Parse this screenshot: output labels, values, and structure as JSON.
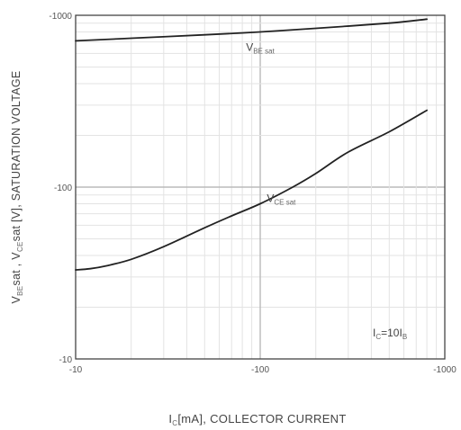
{
  "chart_data": {
    "type": "line",
    "x_scale": "log",
    "y_scale": "log",
    "xlim": [
      -10,
      -1000
    ],
    "ylim": [
      -10,
      -1000
    ],
    "x_ticks": [
      "-10",
      "-100",
      "-1000"
    ],
    "y_ticks": [
      "-10",
      "-100",
      "-1000"
    ],
    "x_tick_values": [
      10,
      100,
      1000
    ],
    "y_tick_values": [
      10,
      100,
      1000
    ],
    "grid": true,
    "xlabel": {
      "main": "I",
      "sub": "C",
      "rest": "[mA], COLLECTOR CURRENT"
    },
    "ylabel": {
      "part1_main": "V",
      "part1_sub": "BE",
      "part1_rest": "sat",
      "sep": " ,  ",
      "part2_main": "V",
      "part2_sub": "CE",
      "part2_rest": "sat",
      "part3": "  [V], SATURATION VOLTAGE"
    },
    "condition": {
      "main1": "I",
      "sub1": "C",
      "eq": "=10I",
      "sub2": "B"
    },
    "series": [
      {
        "label_main": "V",
        "label_sub": "BE",
        "label_rest": "sat",
        "label_x": 100,
        "label_y": 620,
        "x": [
          10,
          20,
          50,
          100,
          200,
          500,
          800
        ],
        "y": [
          710,
          735,
          770,
          800,
          840,
          900,
          950
        ]
      },
      {
        "label_main": "V",
        "label_sub": "CE",
        "label_rest": "sat",
        "label_x": 130,
        "label_y": 82,
        "x": [
          10,
          12,
          15,
          20,
          30,
          50,
          70,
          100,
          150,
          200,
          300,
          500,
          800
        ],
        "y": [
          33,
          33.5,
          35,
          38,
          45,
          58,
          68,
          80,
          100,
          120,
          160,
          210,
          280
        ]
      }
    ]
  }
}
